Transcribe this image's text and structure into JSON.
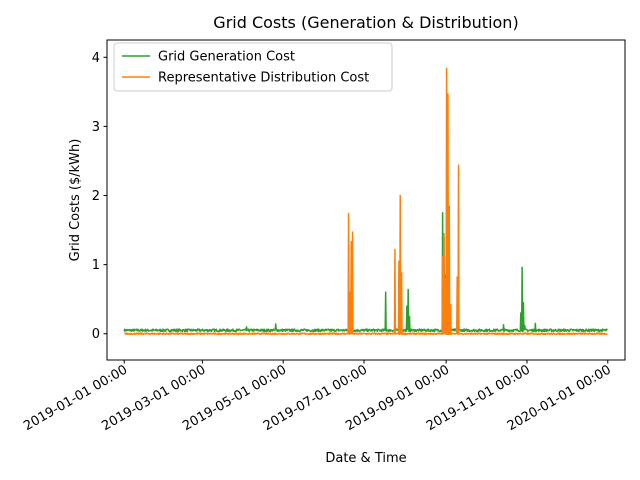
{
  "chart_data": {
    "type": "line",
    "title": "Grid Costs (Generation & Distribution)",
    "xlabel": "Date & Time",
    "ylabel": "Grid Costs ($/kWh)",
    "xlim": [
      "2018-12-19",
      "2020-01-14"
    ],
    "ylim": [
      -0.38,
      4.25
    ],
    "yticks": [
      0,
      1,
      2,
      3,
      4
    ],
    "xticks": [
      {
        "date": "2019-01-01",
        "label": "2019-01-01 00:00"
      },
      {
        "date": "2019-03-01",
        "label": "2019-03-01 00:00"
      },
      {
        "date": "2019-05-01",
        "label": "2019-05-01 00:00"
      },
      {
        "date": "2019-07-01",
        "label": "2019-07-01 00:00"
      },
      {
        "date": "2019-09-01",
        "label": "2019-09-01 00:00"
      },
      {
        "date": "2019-11-01",
        "label": "2019-11-01 00:00"
      },
      {
        "date": "2020-01-01",
        "label": "2020-01-01 00:00"
      }
    ],
    "grid": false,
    "legend_position": "top-left",
    "series": [
      {
        "name": "Grid Generation Cost",
        "color": "#2ca02c",
        "base": 0.05,
        "x": [
          "2019-04-03",
          "2019-04-04",
          "2019-04-25",
          "2019-04-26",
          "2019-07-17",
          "2019-07-18",
          "2019-08-02",
          "2019-08-03",
          "2019-08-04",
          "2019-08-05",
          "2019-08-29",
          "2019-08-30",
          "2019-08-31",
          "2019-09-01",
          "2019-09-02",
          "2019-09-03",
          "2019-09-04",
          "2019-10-14",
          "2019-10-27",
          "2019-10-28",
          "2019-10-29",
          "2019-10-30",
          "2019-11-07"
        ],
        "y": [
          0.1,
          0.06,
          0.14,
          0.06,
          0.6,
          0.06,
          0.4,
          0.64,
          0.25,
          0.06,
          1.75,
          1.4,
          0.85,
          1.75,
          0.9,
          0.3,
          0.06,
          0.13,
          0.3,
          0.96,
          0.45,
          0.12,
          0.15
        ]
      },
      {
        "name": "Representative Distribution Cost",
        "color": "#ff7f0e",
        "base": 0.0,
        "x": [
          "2019-06-18",
          "2019-06-19",
          "2019-06-20",
          "2019-06-21",
          "2019-06-22",
          "2019-06-23",
          "2019-07-23",
          "2019-07-24",
          "2019-07-25",
          "2019-07-26",
          "2019-07-27",
          "2019-07-28",
          "2019-07-29",
          "2019-07-30",
          "2019-08-28",
          "2019-08-29",
          "2019-08-30",
          "2019-08-31",
          "2019-09-01",
          "2019-09-02",
          "2019-09-03",
          "2019-09-04",
          "2019-09-05",
          "2019-09-06",
          "2019-09-07",
          "2019-09-08",
          "2019-09-09",
          "2019-09-10",
          "2019-09-11",
          "2019-09-12"
        ],
        "y": [
          0.0,
          1.74,
          0.6,
          1.33,
          1.47,
          0.0,
          0.0,
          1.22,
          0.0,
          0.0,
          1.05,
          2.0,
          0.88,
          0.0,
          0.0,
          1.12,
          1.45,
          0.8,
          3.84,
          3.47,
          1.85,
          0.42,
          0.0,
          0.0,
          0.0,
          0.0,
          0.82,
          2.44,
          0.0,
          0.0
        ]
      }
    ]
  }
}
